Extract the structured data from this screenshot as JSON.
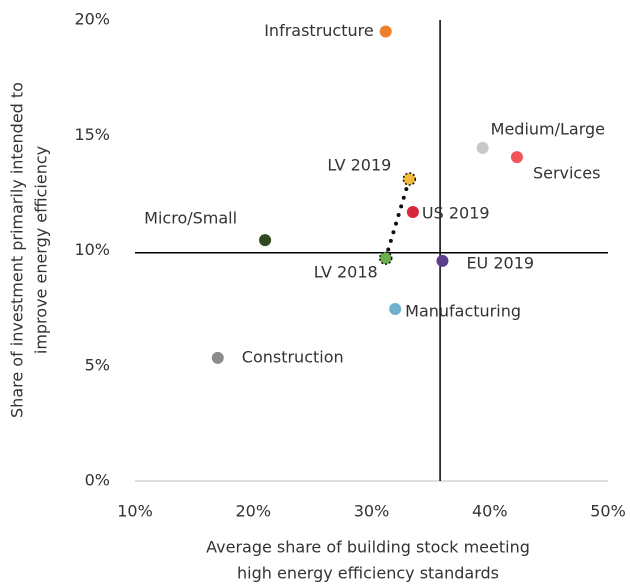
{
  "chart_data": {
    "type": "scatter",
    "xlabel": [
      "Average share of building stock meeting",
      "high energy efficiency standards"
    ],
    "ylabel": [
      "Share of investment primarily intended to",
      "improve energy efficiency"
    ],
    "xlim": [
      10,
      50
    ],
    "xticks": [
      {
        "value": 10,
        "label": "10%"
      },
      {
        "value": 20,
        "label": "20%"
      },
      {
        "value": 30,
        "label": "30%"
      },
      {
        "value": 40,
        "label": "40%"
      },
      {
        "value": 50,
        "label": "50%"
      }
    ],
    "ylim": [
      0,
      20
    ],
    "yticks": [
      {
        "value": 0,
        "label": "0%"
      },
      {
        "value": 5,
        "label": "5%"
      },
      {
        "value": 10,
        "label": "10%"
      },
      {
        "value": 15,
        "label": "15%"
      },
      {
        "value": 20,
        "label": "20%"
      }
    ],
    "reference_lines": {
      "x": 35.8,
      "y": 9.9
    },
    "points": [
      {
        "name": "Infrastructure",
        "x": 31.2,
        "y": 19.5,
        "color": "#f07f2a"
      },
      {
        "name": "Medium/Large",
        "x": 39.4,
        "y": 14.45,
        "color": "#c8c8c8"
      },
      {
        "name": "Services",
        "x": 42.3,
        "y": 14.05,
        "color": "#f2545b"
      },
      {
        "name": "LV 2019",
        "x": 33.2,
        "y": 13.1,
        "color": "#f2bb3c"
      },
      {
        "name": "US 2019",
        "x": 33.5,
        "y": 11.67,
        "color": "#d7263d"
      },
      {
        "name": "Micro/Small",
        "x": 21.0,
        "y": 10.45,
        "color": "#2e4a1f"
      },
      {
        "name": "LV 2018",
        "x": 31.2,
        "y": 9.67,
        "color": "#6ab04c"
      },
      {
        "name": "EU 2019",
        "x": 36.0,
        "y": 9.55,
        "color": "#5b3f8c"
      },
      {
        "name": "Manufacturing",
        "x": 32.0,
        "y": 7.46,
        "color": "#6fb0cf"
      },
      {
        "name": "Construction",
        "x": 17.0,
        "y": 5.34,
        "color": "#8c8c8c"
      }
    ]
  }
}
